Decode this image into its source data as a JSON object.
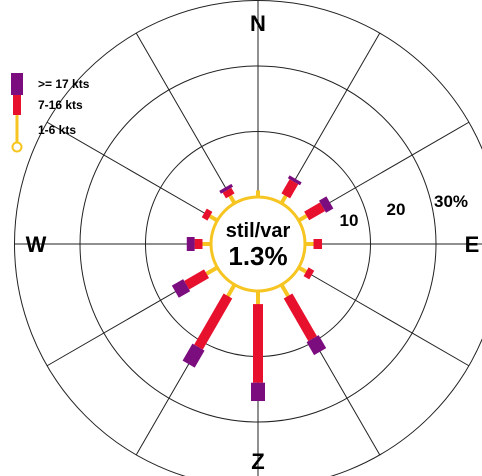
{
  "chart_data": {
    "type": "wind-rose",
    "compass_labels": {
      "north": "N",
      "east": "E",
      "south": "Z",
      "west": "W"
    },
    "ring_labels": [
      "10",
      "20",
      "30%"
    ],
    "radial_max_percent": 30,
    "calm": {
      "label": "stil/var",
      "value": "1.3%",
      "percent": 1.3
    },
    "legend": [
      {
        "label": ">= 17 kts",
        "color": "#7b0d7e"
      },
      {
        "label": "7-16 kts",
        "color": "#e8112d"
      },
      {
        "label": "1-6 kts",
        "color": "#f7c521"
      }
    ],
    "series_order": [
      "1-6 kts",
      "7-16 kts",
      ">= 17 kts"
    ],
    "directions_deg": [
      0,
      30,
      60,
      90,
      120,
      150,
      180,
      210,
      240,
      270,
      300,
      330
    ],
    "values": [
      {
        "dir": 0,
        "kts_1_6": 1.0,
        "kts_7_16": 0.0,
        "kts_17": 0.0
      },
      {
        "dir": 30,
        "kts_1_6": 1.3,
        "kts_7_16": 2.5,
        "kts_17": 0.5
      },
      {
        "dir": 60,
        "kts_1_6": 1.4,
        "kts_7_16": 2.8,
        "kts_17": 1.3
      },
      {
        "dir": 90,
        "kts_1_6": 1.3,
        "kts_7_16": 1.3,
        "kts_17": 0.0
      },
      {
        "dir": 120,
        "kts_1_6": 1.3,
        "kts_7_16": 1.0,
        "kts_17": 0.0
      },
      {
        "dir": 150,
        "kts_1_6": 2.0,
        "kts_7_16": 7.5,
        "kts_17": 2.3
      },
      {
        "dir": 180,
        "kts_1_6": 2.0,
        "kts_7_16": 12.0,
        "kts_17": 2.8
      },
      {
        "dir": 210,
        "kts_1_6": 2.0,
        "kts_7_16": 9.0,
        "kts_17": 3.0
      },
      {
        "dir": 240,
        "kts_1_6": 1.9,
        "kts_7_16": 3.5,
        "kts_17": 2.0
      },
      {
        "dir": 270,
        "kts_1_6": 1.3,
        "kts_7_16": 1.2,
        "kts_17": 1.2
      },
      {
        "dir": 300,
        "kts_1_6": 1.3,
        "kts_7_16": 1.0,
        "kts_17": 0.0
      },
      {
        "dir": 330,
        "kts_1_6": 1.3,
        "kts_7_16": 1.0,
        "kts_17": 0.5
      }
    ]
  }
}
